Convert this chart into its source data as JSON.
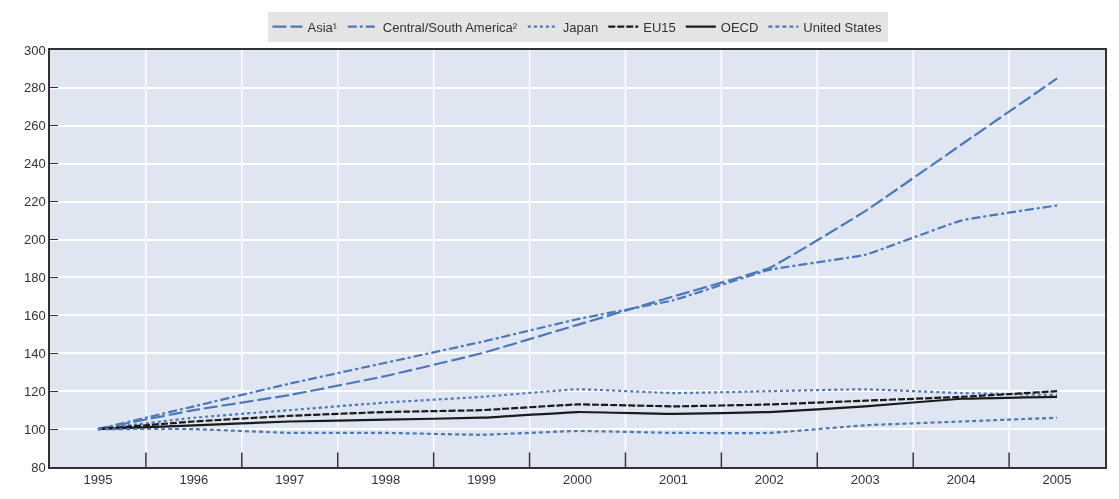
{
  "chart_data": {
    "type": "line",
    "categories": [
      "1995",
      "1996",
      "1997",
      "1998",
      "1999",
      "2000",
      "2001",
      "2002",
      "2003",
      "2004",
      "2005"
    ],
    "series": [
      {
        "name": "Asia¹",
        "color": "#4a78b8",
        "line_style": "longdash",
        "values": [
          100,
          110,
          118,
          128,
          140,
          155,
          170,
          185,
          215,
          250,
          285
        ]
      },
      {
        "name": "Central/South America²",
        "color": "#4a78b8",
        "line_style": "dashdot",
        "values": [
          100,
          112,
          124,
          135,
          146,
          158,
          168,
          184,
          192,
          210,
          218
        ]
      },
      {
        "name": "Japan",
        "color": "#4a78b8",
        "line_style": "dotted",
        "values": [
          100,
          106,
          110,
          114,
          117,
          121,
          119,
          120,
          121,
          119,
          118
        ]
      },
      {
        "name": "EU15",
        "color": "#1a1a1a",
        "line_style": "dashed",
        "values": [
          100,
          104,
          107,
          109,
          110,
          113,
          112,
          113,
          115,
          117,
          120
        ]
      },
      {
        "name": "OECD",
        "color": "#1a1a1a",
        "line_style": "solid",
        "values": [
          100,
          102,
          104,
          105,
          106,
          109,
          108,
          109,
          112,
          116,
          117
        ]
      },
      {
        "name": "United States",
        "color": "#4a78b8",
        "line_style": "dash",
        "values": [
          100,
          100,
          98,
          98,
          97,
          99,
          98,
          98,
          102,
          104,
          106
        ]
      }
    ],
    "ylim": [
      80,
      300
    ],
    "yticks": [
      80,
      100,
      120,
      140,
      160,
      180,
      200,
      220,
      240,
      260,
      280,
      300
    ],
    "grid": true,
    "legend": "top",
    "marker": "none"
  }
}
